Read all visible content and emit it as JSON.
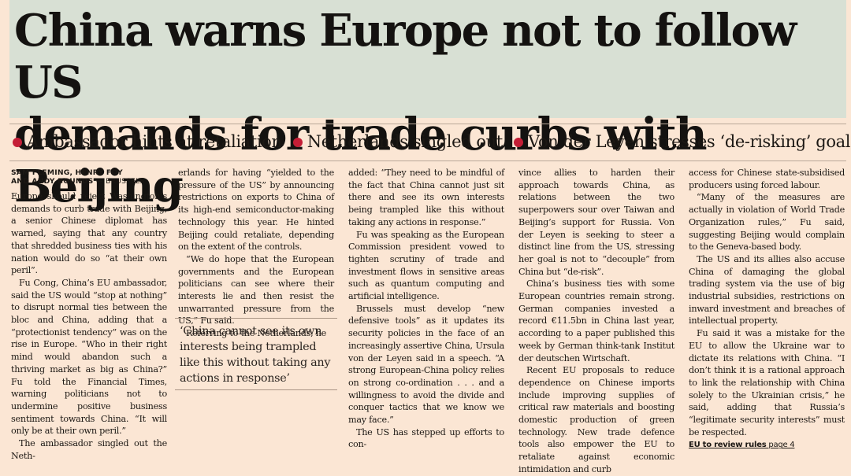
{
  "headline": {
    "line1": "China warns Europe not to follow US",
    "line2": "demands for trade curbs with Beijing"
  },
  "standfirst": {
    "items": [
      "Ambassador hints at retaliation",
      "Netherlands singled out",
      "Von der Leyen stresses ‘de-risking’ goal"
    ],
    "bullet_color": "#c41e36"
  },
  "byline": {
    "authors_1": "SAM FLEMING, HENRY FOY",
    "authors_2": "AND ANDY BOUNDS",
    "location": " — BRUSSELS"
  },
  "columns": {
    "col1": [
      "Europe should reject Washington’s demands to curb trade with Beijing, a senior Chinese diplomat has warned, saying that any country that shredded business ties with his nation would do so “at their own peril”.",
      "Fu Cong, China’s EU ambassador, said the US would “stop at nothing” to disrupt normal ties between the bloc and China, adding that a “protectionist tendency” was on the rise in Europe. “Who in their right mind would abandon such a thriving market as big as China?” Fu told the Financial Times, warning politicians not to undermine positive business sentiment towards China. “It will only be at their own peril.”",
      "The ambassador singled out the Neth-"
    ],
    "col2": [
      "erlands for having “yielded to the pressure of the US” by announcing restrictions on exports to China of its high-end semiconductor-making technology this year. He hinted Beijing could retaliate, depending on the extent of the controls.",
      "“We do hope that the European governments and the European politicians can see where their interests lie and then resist the unwarranted pressure from the US,” Fu said.",
      "Referring to the Netherlands, he"
    ],
    "col3": [
      "added: “They need to be mindful of the fact that China cannot just sit there and see its own interests being trampled like this without taking any actions in response.”",
      "Fu was speaking as the European Commission president vowed to tighten scrutiny of trade and investment flows in sensitive areas such as quantum computing and artificial intelligence.",
      "Brussels must develop “new defensive tools” as it updates its security policies in the face of an increasingly assertive China, Ursula von der Leyen said in a speech. “A strong European-China policy relies on strong co-ordination . . . and a willingness to avoid the divide and conquer tactics that we know we may face.”",
      "The US has stepped up efforts to con-"
    ],
    "col4": [
      "vince allies to harden their approach towards China, as relations between the two superpowers sour over Taiwan and Beijing’s support for Russia. Von der Leyen is seeking to steer a distinct line from the US, stressing her goal is not to “decouple” from China but “de-risk”.",
      "China’s business ties with some European countries remain strong. German companies invested a record €11.5bn in China last year, according to a paper published this week by German think-tank Institut der deutschen Wirtschaft.",
      "Recent EU proposals to reduce dependence on Chinese imports include improving supplies of critical raw materials and boosting domestic production of green technology. New trade defence tools also empower the EU to retaliate against economic intimidation and curb"
    ],
    "col5": [
      "access for Chinese state-subsidised producers using forced labour.",
      "“Many of the measures are actually in violation of World Trade Organization rules,” Fu said, suggesting Beijing would complain to the Geneva-based body.",
      "The US and its allies also accuse China of damaging the global trading system via the use of big industrial subsidies, restrictions on inward investment and breaches of intellectual property.",
      "Fu said it was a mistake for the EU to allow the Ukraine war to dictate its relations with China. “I don’t think it is a rational approach to link the relationship with China solely to the Ukrainian crisis,” he said, adding that Russia’s “legitimate security interests” must be respected."
    ]
  },
  "pullquote": "‘China cannot see its own interests being trampled like this without taking any actions in response’",
  "xref": {
    "label": "EU to review rules",
    "page": " page 4"
  }
}
